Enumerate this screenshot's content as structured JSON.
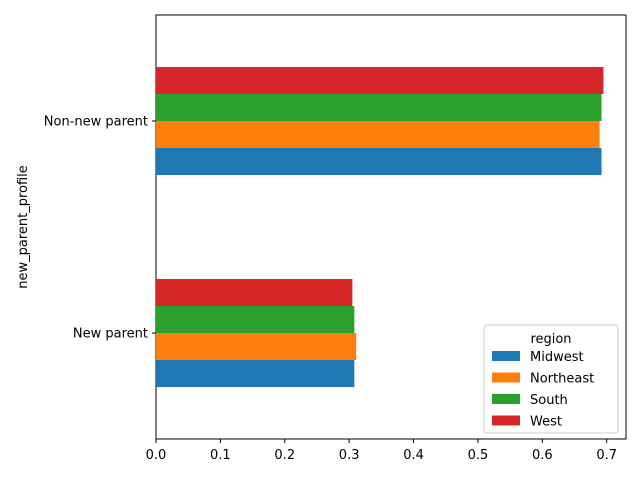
{
  "chart_data": {
    "type": "bar",
    "orientation": "horizontal",
    "categories": [
      "New parent",
      "Non-new parent"
    ],
    "series": [
      {
        "name": "Midwest",
        "color": "#1f77b4",
        "values": [
          0.308,
          0.692
        ]
      },
      {
        "name": "Northeast",
        "color": "#ff7f0e",
        "values": [
          0.311,
          0.689
        ]
      },
      {
        "name": "South",
        "color": "#2ca02c",
        "values": [
          0.308,
          0.692
        ]
      },
      {
        "name": "West",
        "color": "#d62728",
        "values": [
          0.305,
          0.695
        ]
      }
    ],
    "title": "",
    "xlabel": "",
    "ylabel": "new_parent_profile",
    "xlim": [
      0,
      0.73
    ],
    "xticks": [
      "0.0",
      "0.1",
      "0.2",
      "0.3",
      "0.4",
      "0.5",
      "0.6",
      "0.7"
    ],
    "grid": false,
    "legend": {
      "title": "region",
      "placement": "lower-right"
    }
  }
}
